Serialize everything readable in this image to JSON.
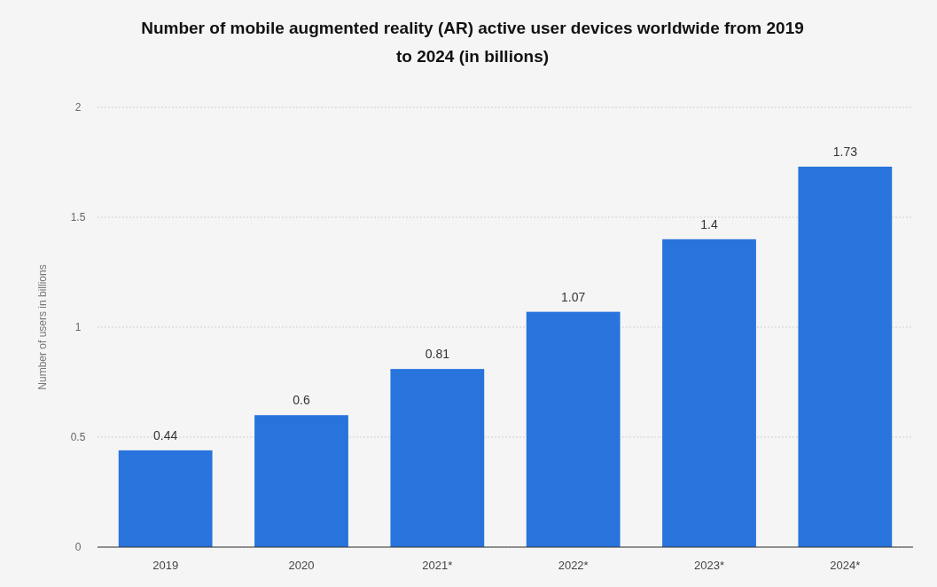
{
  "chart_data": {
    "type": "bar",
    "title": "Number of mobile augmented reality (AR) active user devices worldwide from 2019 to 2024 (in billions)",
    "ylabel": "Number of users in billions",
    "categories": [
      "2019",
      "2020",
      "2021*",
      "2022*",
      "2023*",
      "2024*"
    ],
    "values": [
      0.44,
      0.6,
      0.81,
      1.07,
      1.4,
      1.73
    ],
    "color": "#2874dc",
    "ylim": [
      0,
      2
    ],
    "yticks": [
      0,
      0.5,
      1,
      1.5,
      2
    ],
    "grid": "y",
    "data_labels": true
  }
}
